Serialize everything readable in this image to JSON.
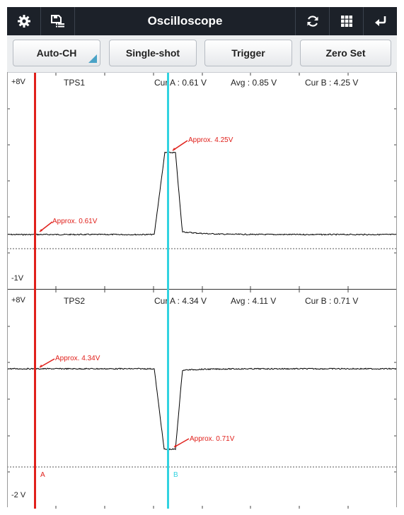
{
  "header": {
    "title": "Oscilloscope",
    "icons": [
      "gear-icon",
      "save-list-icon",
      "refresh-icon",
      "grid-icon",
      "return-icon"
    ]
  },
  "toolbar": {
    "buttons": [
      "Auto-CH",
      "Single-shot",
      "Trigger",
      "Zero Set"
    ]
  },
  "panels": [
    {
      "channel": "TPS1",
      "top_label": "+8V",
      "bottom_label": "-1V",
      "cur_a": "Cur A : 0.61 V",
      "avg": "Avg : 0.85 V",
      "cur_b": "Cur B : 4.25 V",
      "annotation_a": "Approx. 0.61V",
      "annotation_b": "Approx. 4.25V"
    },
    {
      "channel": "TPS2",
      "top_label": "+8V",
      "bottom_label": "-2 V",
      "cur_a": "Cur A : 4.34 V",
      "avg": "Avg : 4.11 V",
      "cur_b": "Cur B : 0.71 V",
      "annotation_a": "Approx. 4.34V",
      "annotation_b": "Approx. 0.71V"
    }
  ],
  "cursors": {
    "a_label": "A",
    "b_label": "B",
    "a_color": "#e0201b",
    "b_color": "#32d3e0"
  },
  "trace_color": "#000000"
}
